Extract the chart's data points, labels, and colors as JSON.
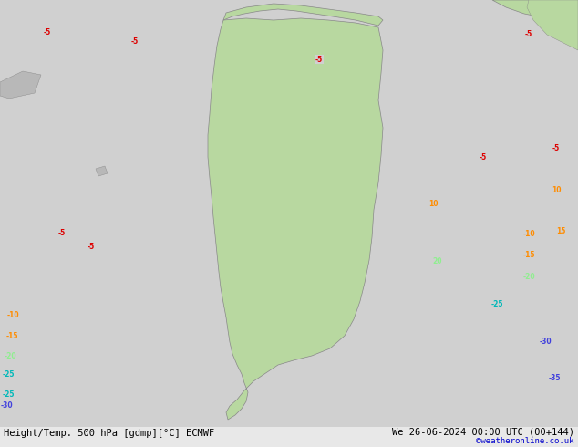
{
  "title_left": "Height/Temp. 500 hPa [gdmp][°C] ECMWF",
  "title_right": "We 26-06-2024 00:00 UTC (00+144)",
  "credit": "©weatheronline.co.uk",
  "bg_color": "#d0d0d0",
  "land_green": "#b8d8a0",
  "land_gray": "#b8b8b8",
  "z_color": "#000000",
  "red": "#dd0000",
  "orange": "#ff8c00",
  "lgreen": "#90ee90",
  "teal": "#00b8b8",
  "blue": "#4040dd"
}
